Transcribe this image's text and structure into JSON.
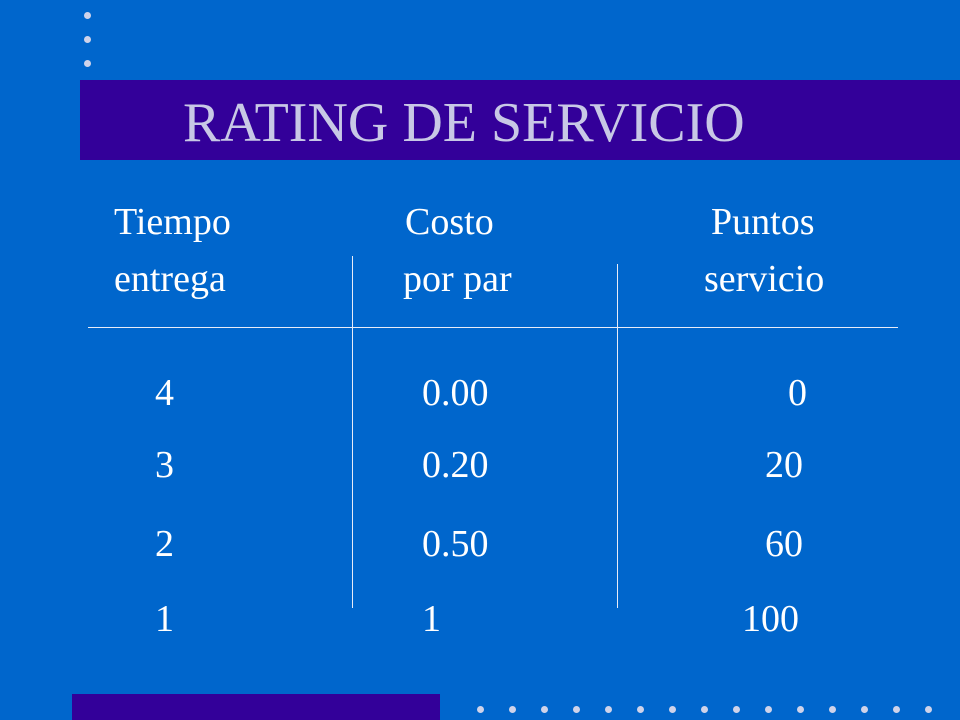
{
  "slide": {
    "title": "RATING DE SERVICIO"
  },
  "table": {
    "headers": [
      {
        "line1": "Tiempo",
        "line2": "entrega"
      },
      {
        "line1": "Costo",
        "line2": "por par"
      },
      {
        "line1": "Puntos",
        "line2": "servicio"
      }
    ],
    "rows": [
      {
        "tiempo": "4",
        "costo": "0.00",
        "puntos": "0"
      },
      {
        "tiempo": "3",
        "costo": "0.20",
        "puntos": "20"
      },
      {
        "tiempo": "2",
        "costo": "0.50",
        "puntos": "60"
      },
      {
        "tiempo": "1",
        "costo": "1",
        "puntos": "100"
      }
    ]
  },
  "colors": {
    "background": "#0066cc",
    "accent_bar": "#330099",
    "title_text": "#c8c8e6",
    "body_text": "#ffffff"
  }
}
